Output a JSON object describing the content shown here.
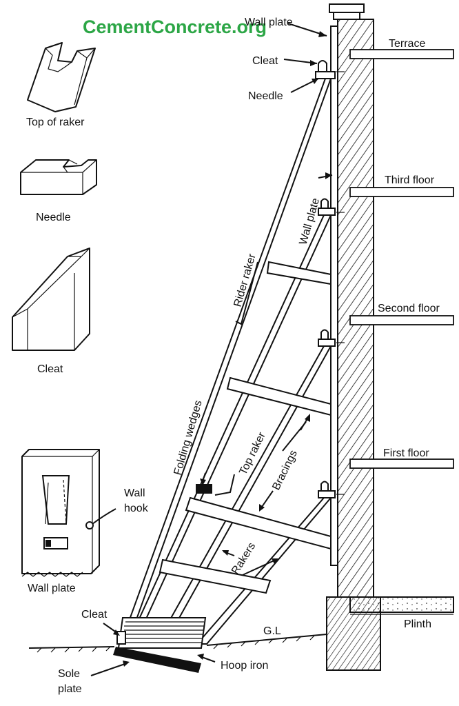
{
  "watermark": "CementConcrete.org",
  "labels": {
    "wall_plate_top": "Wall plate",
    "terrace": "Terrace",
    "cleat_top": "Cleat",
    "needle_top": "Needle",
    "top_of_raker": "Top of raker",
    "needle_detail": "Needle",
    "third_floor": "Third floor",
    "wall_plate_side": "Wall plate",
    "rider_raker": "Rider raker",
    "second_floor": "Second floor",
    "cleat_detail": "Cleat",
    "folding_wedges": "Folding wedges",
    "top_raker": "Top raker",
    "bracings": "Bracings",
    "first_floor": "First floor",
    "wall_hook_1": "Wall",
    "wall_hook_2": "hook",
    "wall_plate_detail": "Wall plate",
    "rakers": "Rakers",
    "plinth": "Plinth",
    "cleat_bottom": "Cleat",
    "gl": "G.L",
    "hoop_iron": "Hoop iron",
    "sole_plate_1": "Sole",
    "sole_plate_2": "plate"
  }
}
